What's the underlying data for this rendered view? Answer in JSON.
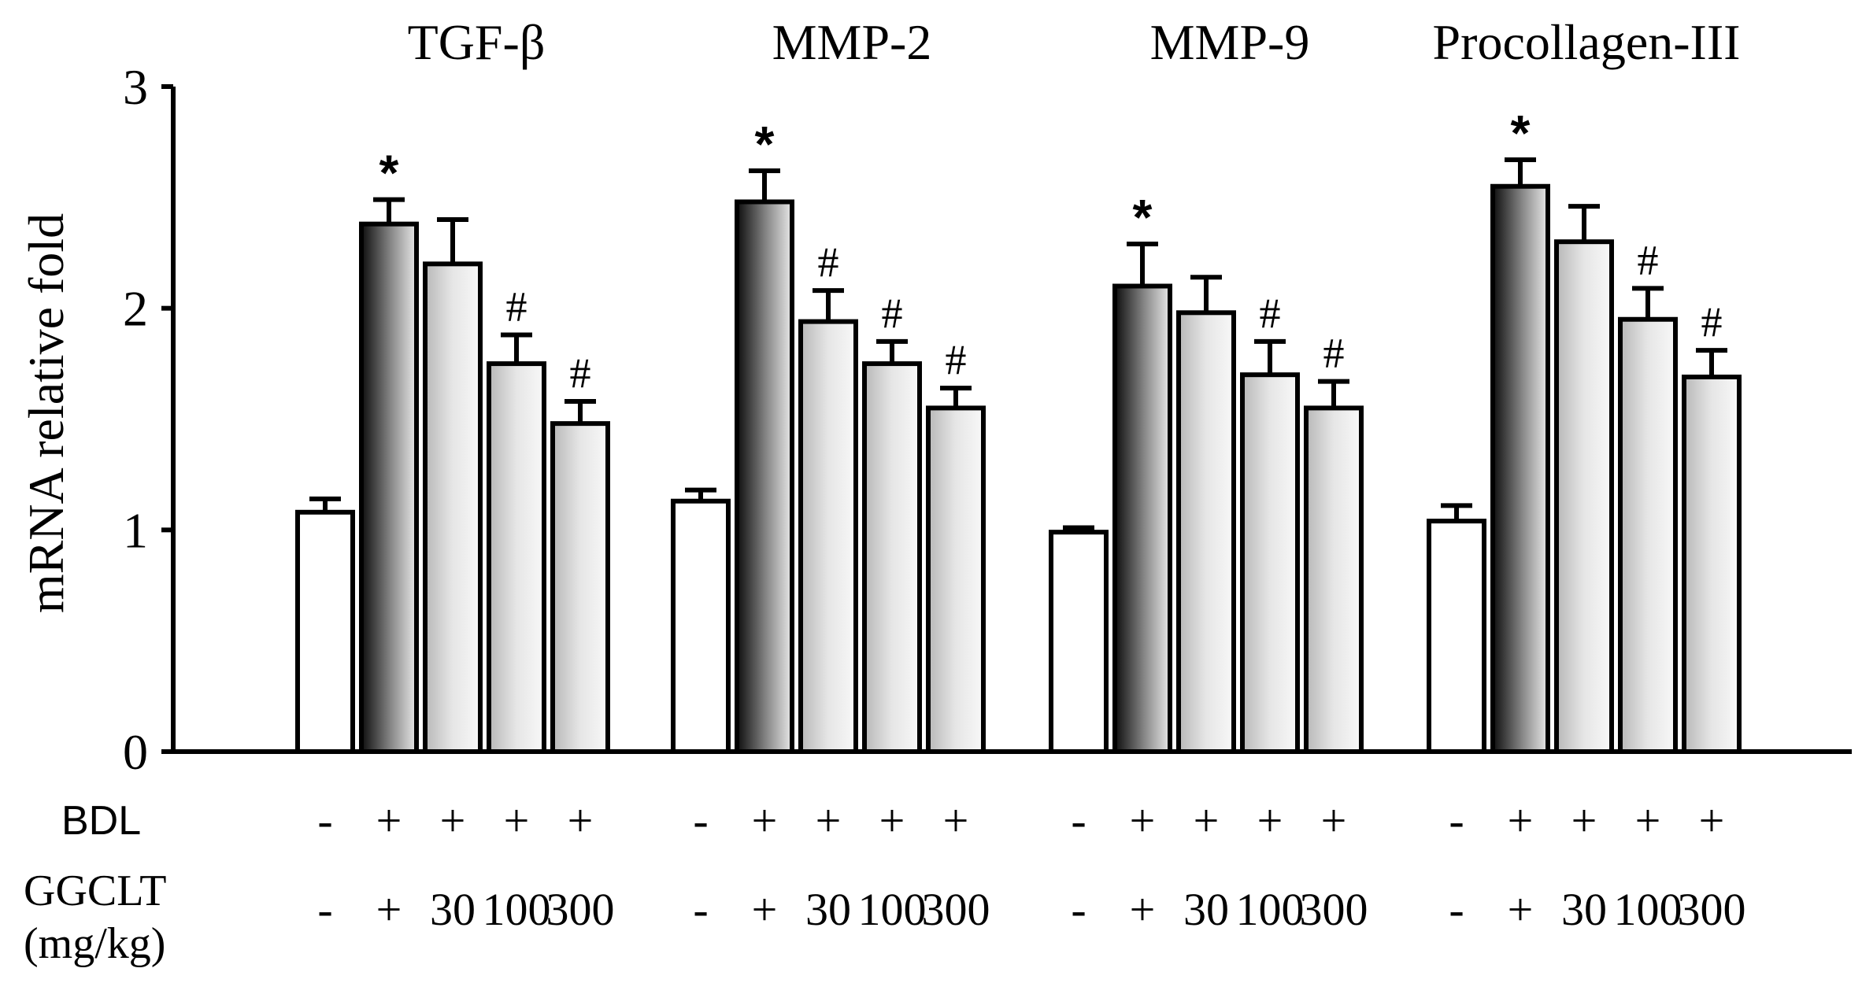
{
  "chart_data": {
    "type": "bar",
    "ylabel": "mRNA relative fold",
    "ylim": [
      0,
      3
    ],
    "yticks": [
      "0",
      "1",
      "2",
      "3"
    ],
    "groups": [
      {
        "name": "TGF-β",
        "values": [
          1.08,
          2.38,
          2.2,
          1.75,
          1.48
        ],
        "errors": [
          0.06,
          0.11,
          0.2,
          0.13,
          0.1
        ],
        "marks": [
          "",
          "*",
          "",
          "#",
          "#"
        ]
      },
      {
        "name": "MMP-2",
        "values": [
          1.13,
          2.48,
          1.94,
          1.75,
          1.55
        ],
        "errors": [
          0.05,
          0.14,
          0.14,
          0.1,
          0.09
        ],
        "marks": [
          "",
          "*",
          "#",
          "#",
          "#"
        ]
      },
      {
        "name": "MMP-9",
        "values": [
          0.99,
          2.1,
          1.98,
          1.7,
          1.55
        ],
        "errors": [
          0.02,
          0.19,
          0.16,
          0.15,
          0.12
        ],
        "marks": [
          "",
          "*",
          "",
          "#",
          "#"
        ]
      },
      {
        "name": "Procollagen-III",
        "values": [
          1.04,
          2.55,
          2.3,
          1.95,
          1.69
        ],
        "errors": [
          0.07,
          0.12,
          0.16,
          0.14,
          0.12
        ],
        "marks": [
          "",
          "*",
          "",
          "#",
          "#"
        ]
      }
    ],
    "conditions": {
      "row1_label": "BDL",
      "row1": [
        "-",
        "+",
        "+",
        "+",
        "+"
      ],
      "row2_label": "GGCLT",
      "row2_unit": "(mg/kg)",
      "row2": [
        "-",
        "+",
        "30",
        "100",
        "300"
      ]
    },
    "bar_styles": [
      "white",
      "dark-gradient",
      "light-gradient",
      "light-gradient",
      "light-gradient"
    ],
    "colors": {
      "axis": "#000000",
      "bar_fill_plain": "#ffffff",
      "gradient_dark": "#111111",
      "gradient_light": "#f5f5f5"
    },
    "grid": false
  }
}
